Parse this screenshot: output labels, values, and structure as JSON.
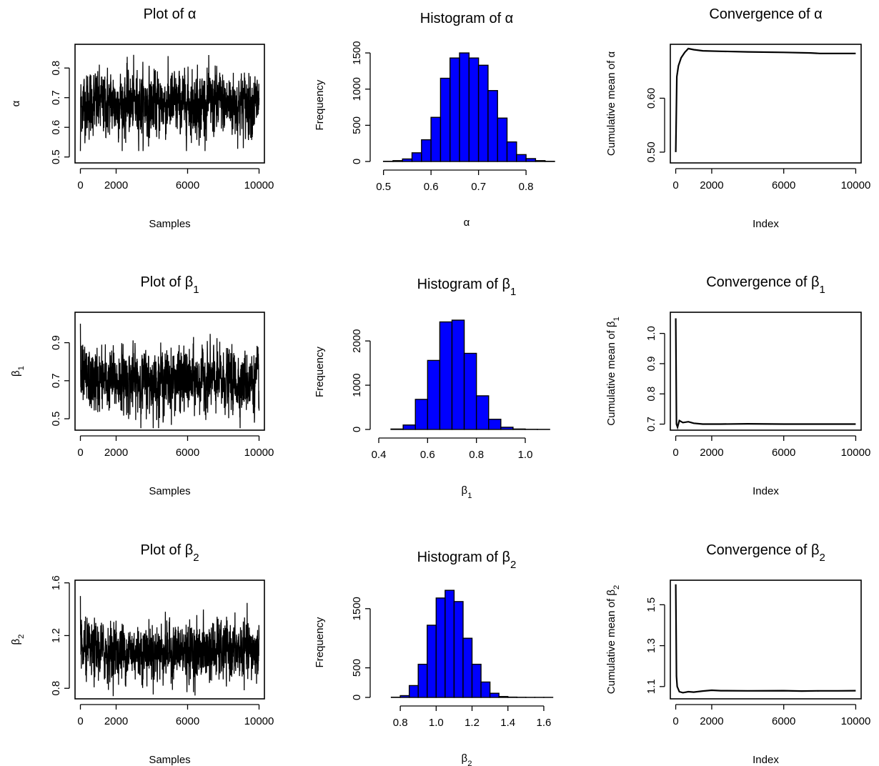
{
  "figure": {
    "colors": {
      "hist_fill": "#0000FF",
      "line": "#000000",
      "frame": "#000000"
    }
  },
  "chart_data": [
    {
      "id": "trace_alpha",
      "type": "line",
      "title": "Plot of α",
      "xlabel": "Samples",
      "ylabel": "α",
      "xlim": [
        -300,
        10300
      ],
      "ylim": [
        0.48,
        0.88
      ],
      "xticks": [
        "0",
        "2000",
        "6000",
        "10000"
      ],
      "xtick_values": [
        0,
        2000,
        6000,
        10000
      ],
      "yticks": [
        "0.5",
        "0.6",
        "0.7",
        "0.8"
      ],
      "ytick_values": [
        0.5,
        0.6,
        0.7,
        0.8
      ],
      "series": [
        {
          "n": 10000,
          "mean": 0.68,
          "sd": 0.05,
          "start": 0.5,
          "min": 0.52,
          "max": 0.86
        }
      ]
    },
    {
      "id": "hist_alpha",
      "type": "bar",
      "title": "Histogram of α",
      "xlabel": "α",
      "ylabel": "Frequency",
      "xlim": [
        0.49,
        0.86
      ],
      "ylim": [
        0,
        1560
      ],
      "xticks": [
        "0.5",
        "0.6",
        "0.7",
        "0.8"
      ],
      "xtick_values": [
        0.5,
        0.6,
        0.7,
        0.8
      ],
      "yticks": [
        "0",
        "500",
        "1000",
        "1500"
      ],
      "ytick_values": [
        0,
        500,
        1000,
        1500
      ],
      "bin_edges": [
        0.5,
        0.52,
        0.54,
        0.56,
        0.58,
        0.6,
        0.62,
        0.64,
        0.66,
        0.68,
        0.7,
        0.72,
        0.74,
        0.76,
        0.78,
        0.8,
        0.82,
        0.84,
        0.86
      ],
      "values": [
        3,
        12,
        35,
        120,
        300,
        610,
        1150,
        1430,
        1500,
        1430,
        1330,
        980,
        600,
        270,
        95,
        40,
        12,
        3
      ]
    },
    {
      "id": "conv_alpha",
      "type": "line",
      "title": "Convergence of α",
      "xlabel": "Index",
      "ylabel": "Cumulative mean of α",
      "xlim": [
        -300,
        10300
      ],
      "ylim": [
        0.48,
        0.7
      ],
      "xticks": [
        "0",
        "2000",
        "6000",
        "10000"
      ],
      "xtick_values": [
        0,
        2000,
        6000,
        10000
      ],
      "yticks": [
        "0.50",
        "0.60"
      ],
      "ytick_values": [
        0.5,
        0.6
      ],
      "x": [
        1,
        60,
        150,
        300,
        500,
        700,
        1000,
        1500,
        2500,
        4000,
        6000,
        7500,
        8000,
        10000
      ],
      "y": [
        0.5,
        0.64,
        0.66,
        0.675,
        0.685,
        0.692,
        0.69,
        0.688,
        0.687,
        0.686,
        0.685,
        0.684,
        0.683,
        0.683
      ]
    },
    {
      "id": "trace_beta1",
      "type": "line",
      "title": "Plot of β1",
      "xlabel": "Samples",
      "ylabel": "β1",
      "xlim": [
        -300,
        10300
      ],
      "ylim": [
        0.44,
        1.06
      ],
      "xticks": [
        "0",
        "2000",
        "6000",
        "10000"
      ],
      "xtick_values": [
        0,
        2000,
        6000,
        10000
      ],
      "yticks": [
        "0.5",
        "0.7",
        "0.9"
      ],
      "ytick_values": [
        0.5,
        0.7,
        0.9
      ],
      "series": [
        {
          "n": 10000,
          "mean": 0.7,
          "sd": 0.075,
          "start": 1.05,
          "min": 0.45,
          "max": 1.0
        }
      ]
    },
    {
      "id": "hist_beta1",
      "type": "bar",
      "title": "Histogram of β1",
      "xlabel": "β1",
      "ylabel": "Frequency",
      "xlim": [
        0.4,
        1.12
      ],
      "ylim": [
        0,
        2600
      ],
      "xticks": [
        "0.4",
        "0.6",
        "0.8",
        "1.0"
      ],
      "xtick_values": [
        0.4,
        0.6,
        0.8,
        1.0
      ],
      "yticks": [
        "0",
        "1000",
        "2000"
      ],
      "ytick_values": [
        0,
        1000,
        2000
      ],
      "bin_edges": [
        0.45,
        0.5,
        0.55,
        0.6,
        0.65,
        0.7,
        0.75,
        0.8,
        0.85,
        0.9,
        0.95,
        1.0,
        1.05,
        1.1
      ],
      "values": [
        10,
        100,
        680,
        1560,
        2430,
        2470,
        1720,
        760,
        230,
        50,
        10,
        3,
        2
      ]
    },
    {
      "id": "conv_beta1",
      "type": "line",
      "title": "Convergence of β1",
      "xlabel": "Index",
      "ylabel": "Cumulative mean of β1",
      "xlim": [
        -300,
        10300
      ],
      "ylim": [
        0.68,
        1.07
      ],
      "xticks": [
        "0",
        "2000",
        "6000",
        "10000"
      ],
      "xtick_values": [
        0,
        2000,
        6000,
        10000
      ],
      "yticks": [
        "0.7",
        "0.8",
        "0.9",
        "1.0"
      ],
      "ytick_values": [
        0.7,
        0.8,
        0.9,
        1.0
      ],
      "x": [
        1,
        40,
        100,
        200,
        400,
        700,
        1000,
        1500,
        2500,
        4000,
        6000,
        10000
      ],
      "y": [
        1.05,
        0.7,
        0.69,
        0.712,
        0.705,
        0.708,
        0.703,
        0.7,
        0.7,
        0.701,
        0.7,
        0.7
      ]
    },
    {
      "id": "trace_beta2",
      "type": "line",
      "title": "Plot of β2",
      "xlabel": "Samples",
      "ylabel": "β2",
      "xlim": [
        -300,
        10300
      ],
      "ylim": [
        0.72,
        1.62
      ],
      "xticks": [
        "0",
        "2000",
        "6000",
        "10000"
      ],
      "xtick_values": [
        0,
        2000,
        6000,
        10000
      ],
      "yticks": [
        "0.8",
        "1.2",
        "1.6"
      ],
      "ytick_values": [
        0.8,
        1.2,
        1.6
      ],
      "series": [
        {
          "n": 10000,
          "mean": 1.08,
          "sd": 0.1,
          "start": 1.6,
          "min": 0.74,
          "max": 1.5
        }
      ]
    },
    {
      "id": "hist_beta2",
      "type": "bar",
      "title": "Histogram of β2",
      "xlabel": "β2",
      "ylabel": "Frequency",
      "xlim": [
        0.68,
        1.66
      ],
      "ylim": [
        0,
        1860
      ],
      "xticks": [
        "0.8",
        "1.0",
        "1.2",
        "1.4",
        "1.6"
      ],
      "xtick_values": [
        0.8,
        1.0,
        1.2,
        1.4,
        1.6
      ],
      "yticks": [
        "0",
        "500",
        "1500"
      ],
      "ytick_values": [
        0,
        500,
        1500
      ],
      "bin_edges": [
        0.75,
        0.8,
        0.85,
        0.9,
        0.95,
        1.0,
        1.05,
        1.1,
        1.15,
        1.2,
        1.25,
        1.3,
        1.35,
        1.4,
        1.45,
        1.5,
        1.55,
        1.6,
        1.65
      ],
      "values": [
        3,
        30,
        200,
        560,
        1220,
        1680,
        1810,
        1620,
        1000,
        560,
        260,
        70,
        15,
        5,
        2,
        1,
        1,
        1
      ]
    },
    {
      "id": "conv_beta2",
      "type": "line",
      "title": "Convergence of β2",
      "xlabel": "Index",
      "ylabel": "Cumulative mean of β2",
      "xlim": [
        -300,
        10300
      ],
      "ylim": [
        1.04,
        1.62
      ],
      "xticks": [
        "0",
        "2000",
        "6000",
        "10000"
      ],
      "xtick_values": [
        0,
        2000,
        6000,
        10000
      ],
      "yticks": [
        "1.1",
        "1.3",
        "1.5"
      ],
      "ytick_values": [
        1.1,
        1.3,
        1.5
      ],
      "x": [
        1,
        40,
        80,
        200,
        400,
        700,
        1000,
        1500,
        2000,
        2500,
        4000,
        6000,
        7000,
        8000,
        9000,
        10000
      ],
      "y": [
        1.6,
        1.15,
        1.1,
        1.075,
        1.07,
        1.075,
        1.073,
        1.078,
        1.082,
        1.08,
        1.079,
        1.08,
        1.078,
        1.079,
        1.079,
        1.08
      ]
    }
  ]
}
